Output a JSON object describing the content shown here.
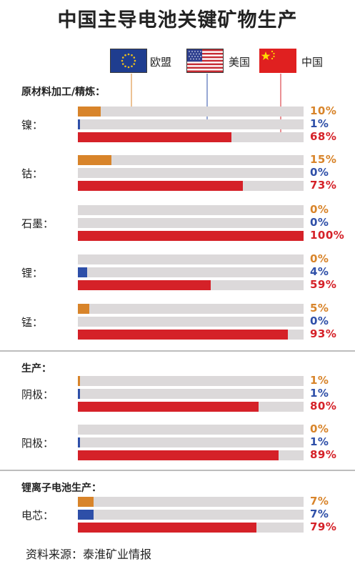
{
  "title": "中国主导电池关键矿物生产",
  "legend": [
    {
      "key": "eu",
      "label": "欧盟",
      "color": "#d8842a"
    },
    {
      "key": "us",
      "label": "美国",
      "color": "#2e4fa8"
    },
    {
      "key": "cn",
      "label": "中国",
      "color": "#d52128"
    }
  ],
  "sections": [
    {
      "title": "原材料加工/精炼：",
      "items": [
        {
          "label": "镍：",
          "values": [
            10,
            1,
            68
          ]
        },
        {
          "label": "钴：",
          "values": [
            15,
            0,
            73
          ]
        },
        {
          "label": "石墨：",
          "values": [
            0,
            0,
            100
          ]
        },
        {
          "label": "锂：",
          "values": [
            0,
            4,
            59
          ]
        },
        {
          "label": "锰：",
          "values": [
            5,
            0,
            93
          ]
        }
      ]
    },
    {
      "title": "生产：",
      "items": [
        {
          "label": "阴极：",
          "values": [
            1,
            1,
            80
          ]
        },
        {
          "label": "阳极：",
          "values": [
            0,
            1,
            89
          ]
        }
      ]
    },
    {
      "title": "锂离子电池生产：",
      "items": [
        {
          "label": "电芯：",
          "values": [
            7,
            7,
            79
          ]
        }
      ]
    }
  ],
  "chart_data": {
    "type": "bar",
    "orientation": "horizontal",
    "title": "中国主导电池关键矿物生产",
    "unit": "%",
    "xlim": [
      0,
      100
    ],
    "categories": [
      "镍",
      "钴",
      "石墨",
      "锂",
      "锰",
      "阴极",
      "阳极",
      "电芯"
    ],
    "groups": [
      "原材料加工/精炼",
      "原材料加工/精炼",
      "原材料加工/精炼",
      "原材料加工/精炼",
      "原材料加工/精炼",
      "生产",
      "生产",
      "锂离子电池生产"
    ],
    "series": [
      {
        "name": "欧盟",
        "values": [
          10,
          15,
          0,
          0,
          5,
          1,
          0,
          7
        ]
      },
      {
        "name": "美国",
        "values": [
          1,
          0,
          0,
          4,
          0,
          1,
          1,
          7
        ]
      },
      {
        "name": "中国",
        "values": [
          68,
          73,
          100,
          59,
          93,
          80,
          89,
          79
        ]
      }
    ],
    "legend": "top"
  },
  "source": "资料来源：泰淮矿业情报"
}
